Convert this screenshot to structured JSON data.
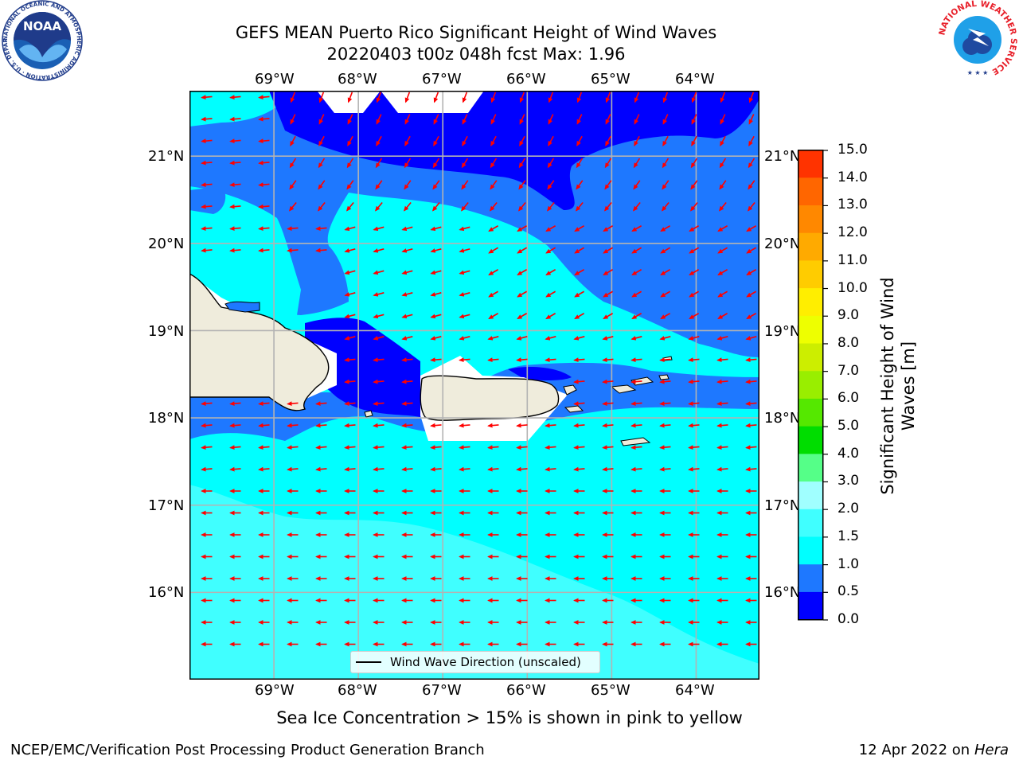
{
  "title": {
    "line1": "GEFS MEAN Puerto Rico Significant Height of Wind Waves",
    "line2": "20220403 t00z 048h fcst   Max: 1.96"
  },
  "map": {
    "lon_range": [
      -70.0,
      -63.25
    ],
    "lat_range": [
      15.0,
      21.75
    ],
    "lon_ticks": [
      "69°W",
      "68°W",
      "67°W",
      "66°W",
      "65°W",
      "64°W"
    ],
    "lat_ticks": [
      "21°N",
      "20°N",
      "19°N",
      "18°N",
      "17°N",
      "16°N"
    ],
    "grid": true,
    "land_color": "#efecdc",
    "sea_colors": {
      "0.0-0.5": "#0000ff",
      "0.5-1.0": "#1e78ff",
      "1.0-1.5": "#00ffff",
      "1.5-2.0": "#40ffff",
      "no_data": "#ffffff"
    },
    "arrow_color": "#ff0000",
    "legend_label": "Wind Wave Direction (unscaled)"
  },
  "colorbar": {
    "label": "Significant Height of Wind Waves [m]",
    "ticks": [
      "15.0",
      "14.0",
      "13.0",
      "12.0",
      "11.0",
      "10.0",
      "9.0",
      "8.0",
      "7.0",
      "6.0",
      "5.0",
      "4.0",
      "3.0",
      "2.0",
      "1.5",
      "1.0",
      "0.5",
      "0.0"
    ],
    "colors": [
      "#0000ff",
      "#1e78ff",
      "#00ffff",
      "#40ffff",
      "#a0ffff",
      "#55ff88",
      "#00dd00",
      "#55e800",
      "#99ee00",
      "#ccee00",
      "#eeff00",
      "#ffee00",
      "#ffcc00",
      "#ffaa00",
      "#ff8800",
      "#ff6600",
      "#ff3300",
      "#ff0000"
    ]
  },
  "note": "Sea Ice Concentration > 15% is shown in pink to yellow",
  "footer": {
    "left": "NCEP/EMC/Verification Post Processing Product Generation Branch",
    "right_date": "12 Apr 2022 on ",
    "right_host": "Hera"
  },
  "logos": {
    "noaa_text": "NOAA",
    "noaa_ring": "NATIONAL OCEANIC AND ATMOSPHERIC ADMINISTRATION · U.S. DEPARTMENT OF COMMERCE",
    "nws_ring": "NATIONAL WEATHER SERVICE"
  }
}
